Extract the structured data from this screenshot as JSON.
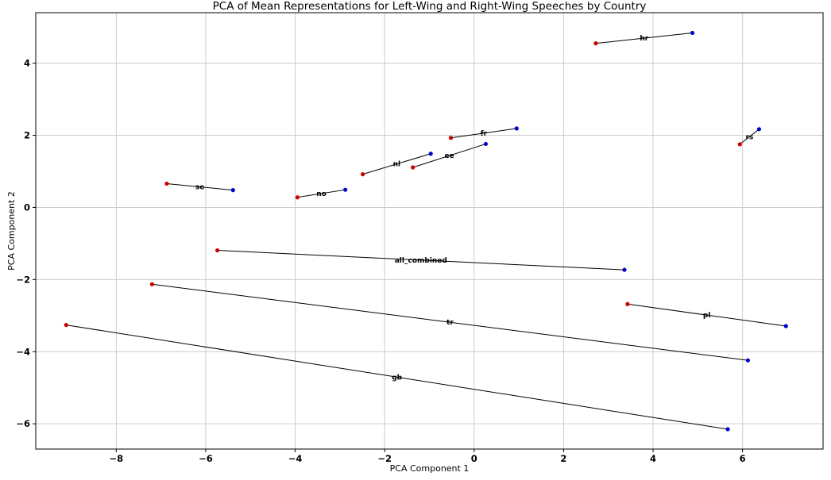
{
  "chart_data": {
    "type": "scatter",
    "title": "PCA of Mean Representations for Left-Wing and Right-Wing Speeches by Country",
    "xlabel": "PCA Component 1",
    "ylabel": "PCA Component 2",
    "xlim": [
      -9.8,
      7.8
    ],
    "ylim": [
      -6.7,
      5.4
    ],
    "xticks": [
      -8,
      -6,
      -4,
      -2,
      0,
      2,
      4,
      6
    ],
    "yticks": [
      -6,
      -4,
      -2,
      0,
      2,
      4
    ],
    "grid": true,
    "colors": {
      "left_point": "#0000cc",
      "right_point": "#cc0000",
      "connector": "#000000",
      "grid": "#cccccc"
    },
    "pairs": [
      {
        "label": "hr",
        "right": [
          2.72,
          4.55
        ],
        "left": [
          4.88,
          4.84
        ]
      },
      {
        "label": "fr",
        "right": [
          -0.52,
          1.93
        ],
        "left": [
          0.95,
          2.19
        ]
      },
      {
        "label": "rs",
        "right": [
          5.94,
          1.75
        ],
        "left": [
          6.37,
          2.17
        ]
      },
      {
        "label": "ee",
        "right": [
          -1.37,
          1.11
        ],
        "left": [
          0.26,
          1.76
        ]
      },
      {
        "label": "nl",
        "right": [
          -2.49,
          0.92
        ],
        "left": [
          -0.97,
          1.49
        ]
      },
      {
        "label": "se",
        "right": [
          -6.87,
          0.66
        ],
        "left": [
          -5.39,
          0.48
        ]
      },
      {
        "label": "no",
        "right": [
          -3.95,
          0.28
        ],
        "left": [
          -2.88,
          0.49
        ]
      },
      {
        "label": "all_combined",
        "right": [
          -5.74,
          -1.19
        ],
        "left": [
          3.36,
          -1.73
        ]
      },
      {
        "label": "tr",
        "right": [
          -7.2,
          -2.13
        ],
        "left": [
          6.12,
          -4.24
        ]
      },
      {
        "label": "pl",
        "right": [
          3.43,
          -2.68
        ],
        "left": [
          6.97,
          -3.29
        ]
      },
      {
        "label": "gb",
        "right": [
          -9.12,
          -3.26
        ],
        "left": [
          5.67,
          -6.15
        ]
      }
    ]
  }
}
